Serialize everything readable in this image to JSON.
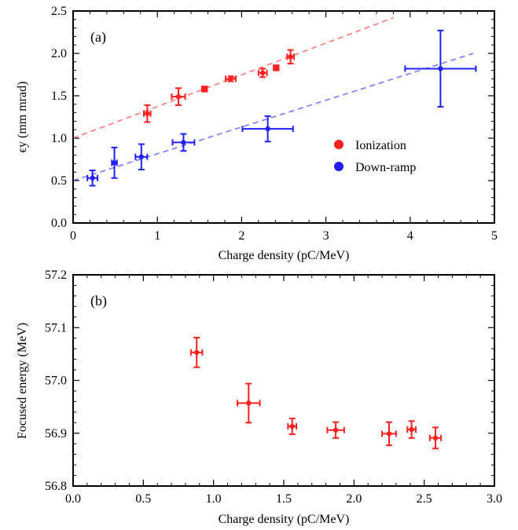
{
  "chart_data": [
    {
      "type": "scatter",
      "panel_label": "(a)",
      "xlabel": "Charge density (pC/MeV)",
      "ylabel": "ϵy (mm mrad)",
      "xlim": [
        0,
        5
      ],
      "ylim": [
        0,
        2.5
      ],
      "x_ticks": [
        "0",
        "1",
        "2",
        "3",
        "4",
        "5"
      ],
      "y_ticks": [
        "0.0",
        "0.5",
        "1.0",
        "1.5",
        "2.0",
        "2.5"
      ],
      "legend_position": "right",
      "series": [
        {
          "name": "Ionization",
          "color": "#ff2020",
          "points": [
            {
              "x": 0.88,
              "y": 1.29,
              "xerr": 0.04,
              "yerr": 0.1
            },
            {
              "x": 1.25,
              "y": 1.49,
              "xerr": 0.08,
              "yerr": 0.1
            },
            {
              "x": 1.56,
              "y": 1.58,
              "xerr": 0.03,
              "yerr": 0.03
            },
            {
              "x": 1.87,
              "y": 1.7,
              "xerr": 0.06,
              "yerr": 0.03
            },
            {
              "x": 2.25,
              "y": 1.77,
              "xerr": 0.05,
              "yerr": 0.05
            },
            {
              "x": 2.41,
              "y": 1.83,
              "xerr": 0.03,
              "yerr": 0.03
            },
            {
              "x": 2.58,
              "y": 1.96,
              "xerr": 0.04,
              "yerr": 0.08
            }
          ],
          "fit": {
            "x": [
              0,
              3.8
            ],
            "y": [
              1.0,
              2.42
            ]
          }
        },
        {
          "name": "Down-ramp",
          "color": "#2020ff",
          "points": [
            {
              "x": 0.23,
              "y": 0.53,
              "xerr": 0.06,
              "yerr": 0.09
            },
            {
              "x": 0.49,
              "y": 0.71,
              "xerr": 0.03,
              "yerr": 0.18
            },
            {
              "x": 0.81,
              "y": 0.78,
              "xerr": 0.07,
              "yerr": 0.15
            },
            {
              "x": 1.31,
              "y": 0.95,
              "xerr": 0.13,
              "yerr": 0.1
            },
            {
              "x": 2.31,
              "y": 1.11,
              "xerr": 0.3,
              "yerr": 0.15
            },
            {
              "x": 4.36,
              "y": 1.82,
              "xerr": 0.42,
              "yerr": 0.45
            }
          ],
          "fit": {
            "x": [
              0,
              4.75
            ],
            "y": [
              0.5,
              2.0
            ]
          }
        }
      ]
    },
    {
      "type": "scatter",
      "panel_label": "(b)",
      "xlabel": "Charge density (pC/MeV)",
      "ylabel": "Focused energy (MeV)",
      "xlim": [
        0,
        3
      ],
      "ylim": [
        56.8,
        57.2
      ],
      "x_ticks": [
        "0.0",
        "0.5",
        "1.0",
        "1.5",
        "2.0",
        "2.5",
        "3.0"
      ],
      "y_ticks": [
        "56.8",
        "56.9",
        "57.0",
        "57.1",
        "57.2"
      ],
      "series": [
        {
          "color": "#ff2020",
          "points": [
            {
              "x": 0.88,
              "y": 57.053,
              "xerr": 0.04,
              "yerr": 0.028
            },
            {
              "x": 1.25,
              "y": 56.957,
              "xerr": 0.08,
              "yerr": 0.037
            },
            {
              "x": 1.56,
              "y": 56.913,
              "xerr": 0.03,
              "yerr": 0.015
            },
            {
              "x": 1.87,
              "y": 56.906,
              "xerr": 0.06,
              "yerr": 0.015
            },
            {
              "x": 2.25,
              "y": 56.899,
              "xerr": 0.05,
              "yerr": 0.022
            },
            {
              "x": 2.41,
              "y": 56.907,
              "xerr": 0.03,
              "yerr": 0.016
            },
            {
              "x": 2.58,
              "y": 56.891,
              "xerr": 0.04,
              "yerr": 0.02
            }
          ]
        }
      ]
    }
  ]
}
